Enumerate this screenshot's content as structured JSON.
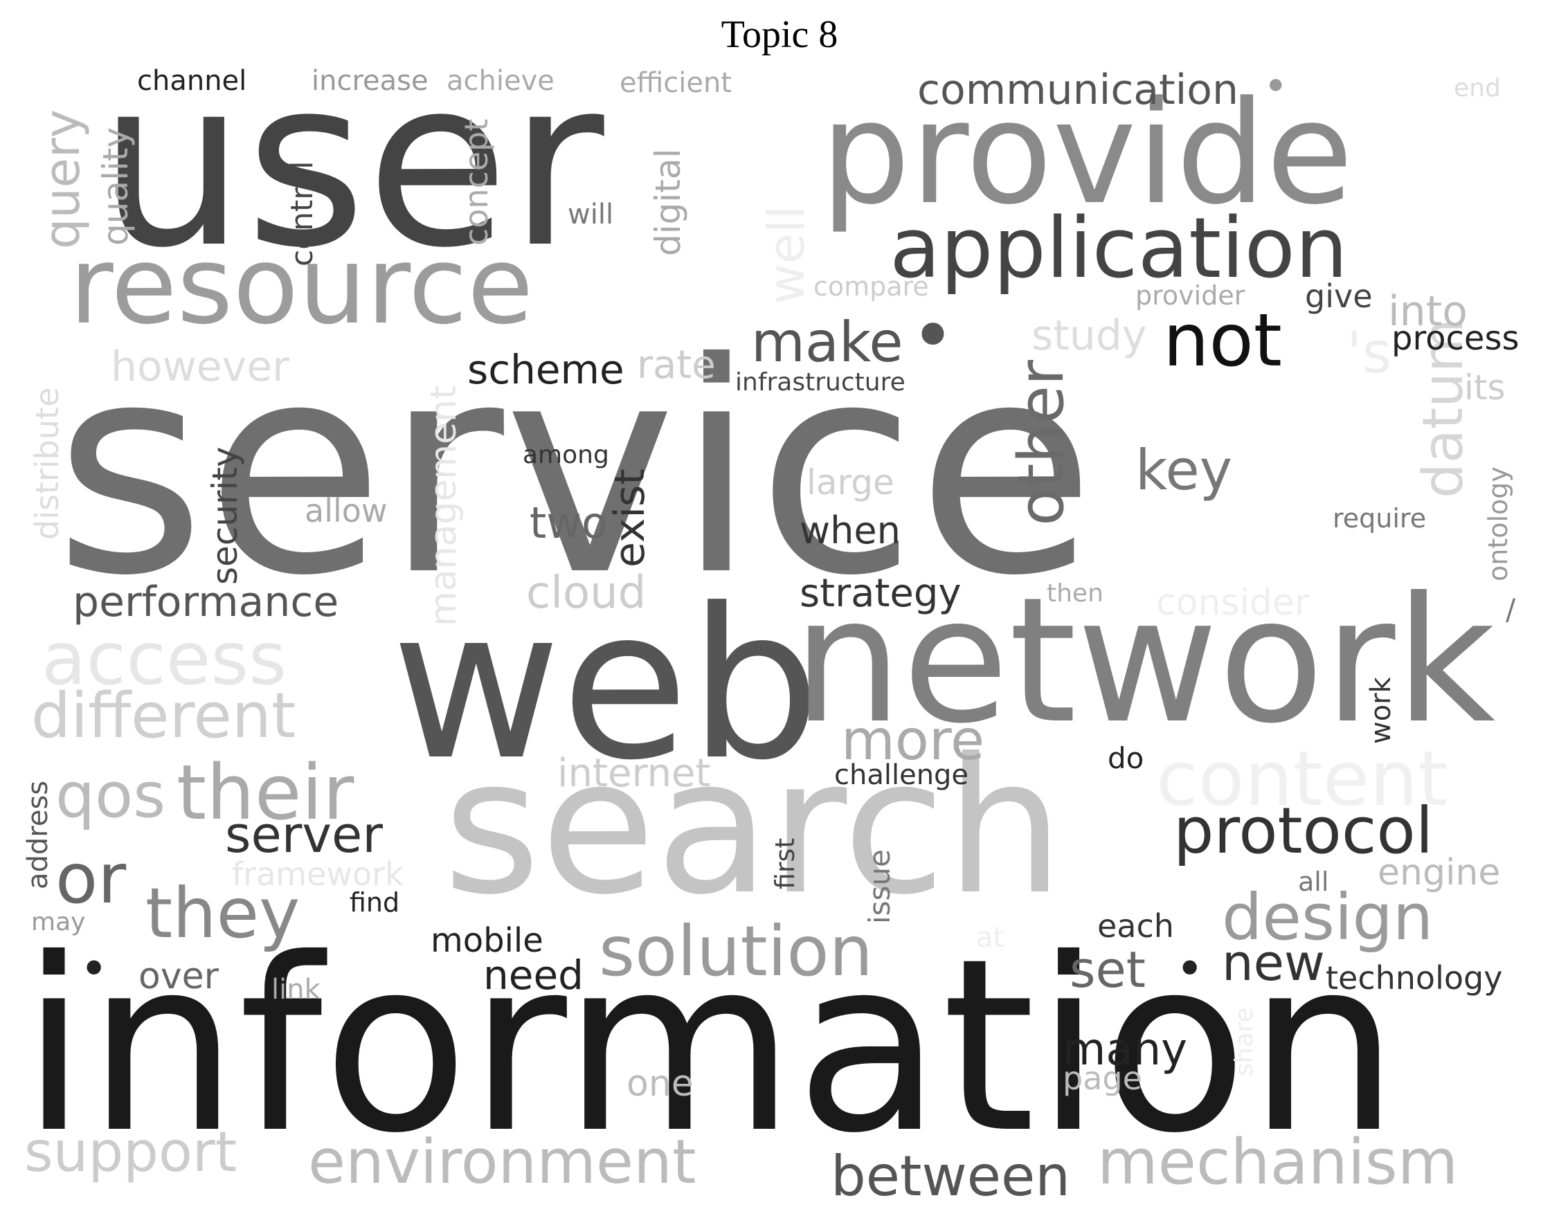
{
  "title": "Topic 8",
  "words": [
    {
      "text": "service",
      "color": "#6f6f6f"
    },
    {
      "text": "information",
      "color": "#1a1a1a"
    },
    {
      "text": "user",
      "color": "#444444"
    },
    {
      "text": "web",
      "color": "#555555"
    },
    {
      "text": "network",
      "color": "#808080"
    },
    {
      "text": "search",
      "color": "#c4c4c4"
    },
    {
      "text": "provide",
      "color": "#8a8a8a"
    },
    {
      "text": "resource",
      "color": "#9c9c9c"
    },
    {
      "text": "application",
      "color": "#444444"
    },
    {
      "text": "not",
      "color": "#111111"
    },
    {
      "text": "make",
      "color": "#555555"
    },
    {
      "text": "other",
      "color": "#6a6a6a"
    },
    {
      "text": "communication",
      "color": "#555555"
    },
    {
      "text": "protocol",
      "color": "#333333"
    },
    {
      "text": "design",
      "color": "#9a9a9a"
    },
    {
      "text": "solution",
      "color": "#9a9a9a"
    },
    {
      "text": "environment",
      "color": "#bbbbbb"
    },
    {
      "text": "mechanism",
      "color": "#bbbbbb"
    },
    {
      "text": "between",
      "color": "#555555"
    },
    {
      "text": "support",
      "color": "#cccccc"
    },
    {
      "text": "their",
      "color": "#aaaaaa"
    },
    {
      "text": "they",
      "color": "#888888"
    },
    {
      "text": "or",
      "color": "#666666"
    },
    {
      "text": "qos",
      "color": "#bbbbbb"
    },
    {
      "text": "different",
      "color": "#cfcfcf"
    },
    {
      "text": "access",
      "color": "#e6e6e6"
    },
    {
      "text": "performance",
      "color": "#555555"
    },
    {
      "text": "server",
      "color": "#333333"
    },
    {
      "text": "content",
      "color": "#f0f0f0"
    },
    {
      "text": "more",
      "color": "#aaaaaa"
    },
    {
      "text": "datum",
      "color": "#d6d6d6"
    },
    {
      "text": "key",
      "color": "#777777"
    },
    {
      "text": "scheme",
      "color": "#222222"
    },
    {
      "text": "strategy",
      "color": "#333333"
    },
    {
      "text": "two",
      "color": "#666666"
    },
    {
      "text": "exist",
      "color": "#333333"
    },
    {
      "text": "when",
      "color": "#333333"
    },
    {
      "text": "cloud",
      "color": "#cccccc"
    },
    {
      "text": "large",
      "color": "#cfcfcf"
    },
    {
      "text": "internet",
      "color": "#cccccc"
    },
    {
      "text": "challenge",
      "color": "#333333"
    },
    {
      "text": "security",
      "color": "#444444"
    },
    {
      "text": "query",
      "color": "#bbbbbb"
    },
    {
      "text": "quality",
      "color": "#aaaaaa"
    },
    {
      "text": "control",
      "color": "#444444"
    },
    {
      "text": "concept",
      "color": "#aaaaaa"
    },
    {
      "text": "digital",
      "color": "#aaaaaa"
    },
    {
      "text": "well",
      "color": "#eeeeee"
    },
    {
      "text": "will",
      "color": "#777777"
    },
    {
      "text": "channel",
      "color": "#222222"
    },
    {
      "text": "increase",
      "color": "#999999"
    },
    {
      "text": "achieve",
      "color": "#aaaaaa"
    },
    {
      "text": "efficient",
      "color": "#aaaaaa"
    },
    {
      "text": "end",
      "color": "#dddddd"
    },
    {
      "text": "compare",
      "color": "#cccccc"
    },
    {
      "text": "provider",
      "color": "#aaaaaa"
    },
    {
      "text": "give",
      "color": "#444444"
    },
    {
      "text": "into",
      "color": "#bbbbbb"
    },
    {
      "text": "study",
      "color": "#dddddd"
    },
    {
      "text": "process",
      "color": "#222222"
    },
    {
      "text": "'s",
      "color": "#eeeeee"
    },
    {
      "text": "its",
      "color": "#cccccc"
    },
    {
      "text": "ontology",
      "color": "#999999"
    },
    {
      "text": "require",
      "color": "#777777"
    },
    {
      "text": "however",
      "color": "#dddddd"
    },
    {
      "text": "rate",
      "color": "#cccccc"
    },
    {
      "text": "infrastructure",
      "color": "#444444"
    },
    {
      "text": "distribute",
      "color": "#dddddd"
    },
    {
      "text": "management",
      "color": "#e6e6e6"
    },
    {
      "text": "allow",
      "color": "#aaaaaa"
    },
    {
      "text": "among",
      "color": "#333333"
    },
    {
      "text": "then",
      "color": "#aaaaaa"
    },
    {
      "text": "consider",
      "color": "#eeeeee"
    },
    {
      "text": "work",
      "color": "#333333"
    },
    {
      "text": "do",
      "color": "#222222"
    },
    {
      "text": "address",
      "color": "#555555"
    },
    {
      "text": "framework",
      "color": "#e6e6e6"
    },
    {
      "text": "find",
      "color": "#222222"
    },
    {
      "text": "may",
      "color": "#999999"
    },
    {
      "text": "first",
      "color": "#444444"
    },
    {
      "text": "issue",
      "color": "#777777"
    },
    {
      "text": "engine",
      "color": "#bbbbbb"
    },
    {
      "text": "all",
      "color": "#777777"
    },
    {
      "text": "each",
      "color": "#333333"
    },
    {
      "text": "at",
      "color": "#eeeeee"
    },
    {
      "text": "mobile",
      "color": "#222222"
    },
    {
      "text": "need",
      "color": "#222222"
    },
    {
      "text": "over",
      "color": "#666666"
    },
    {
      "text": "link",
      "color": "#aaaaaa"
    },
    {
      "text": "set",
      "color": "#666666"
    },
    {
      "text": "new",
      "color": "#333333"
    },
    {
      "text": "technology",
      "color": "#333333"
    },
    {
      "text": "share",
      "color": "#eeeeee"
    },
    {
      "text": "many",
      "color": "#222222"
    },
    {
      "text": "page",
      "color": "#bbbbbb"
    },
    {
      "text": "one",
      "color": "#bbbbbb"
    },
    {
      "text": "/",
      "color": "#777777"
    },
    {
      "text": "•",
      "color": "#555555"
    },
    {
      "text": "•",
      "color": "#999999"
    },
    {
      "text": "•",
      "color": "#222222"
    },
    {
      "text": "•",
      "color": "#222222"
    }
  ]
}
